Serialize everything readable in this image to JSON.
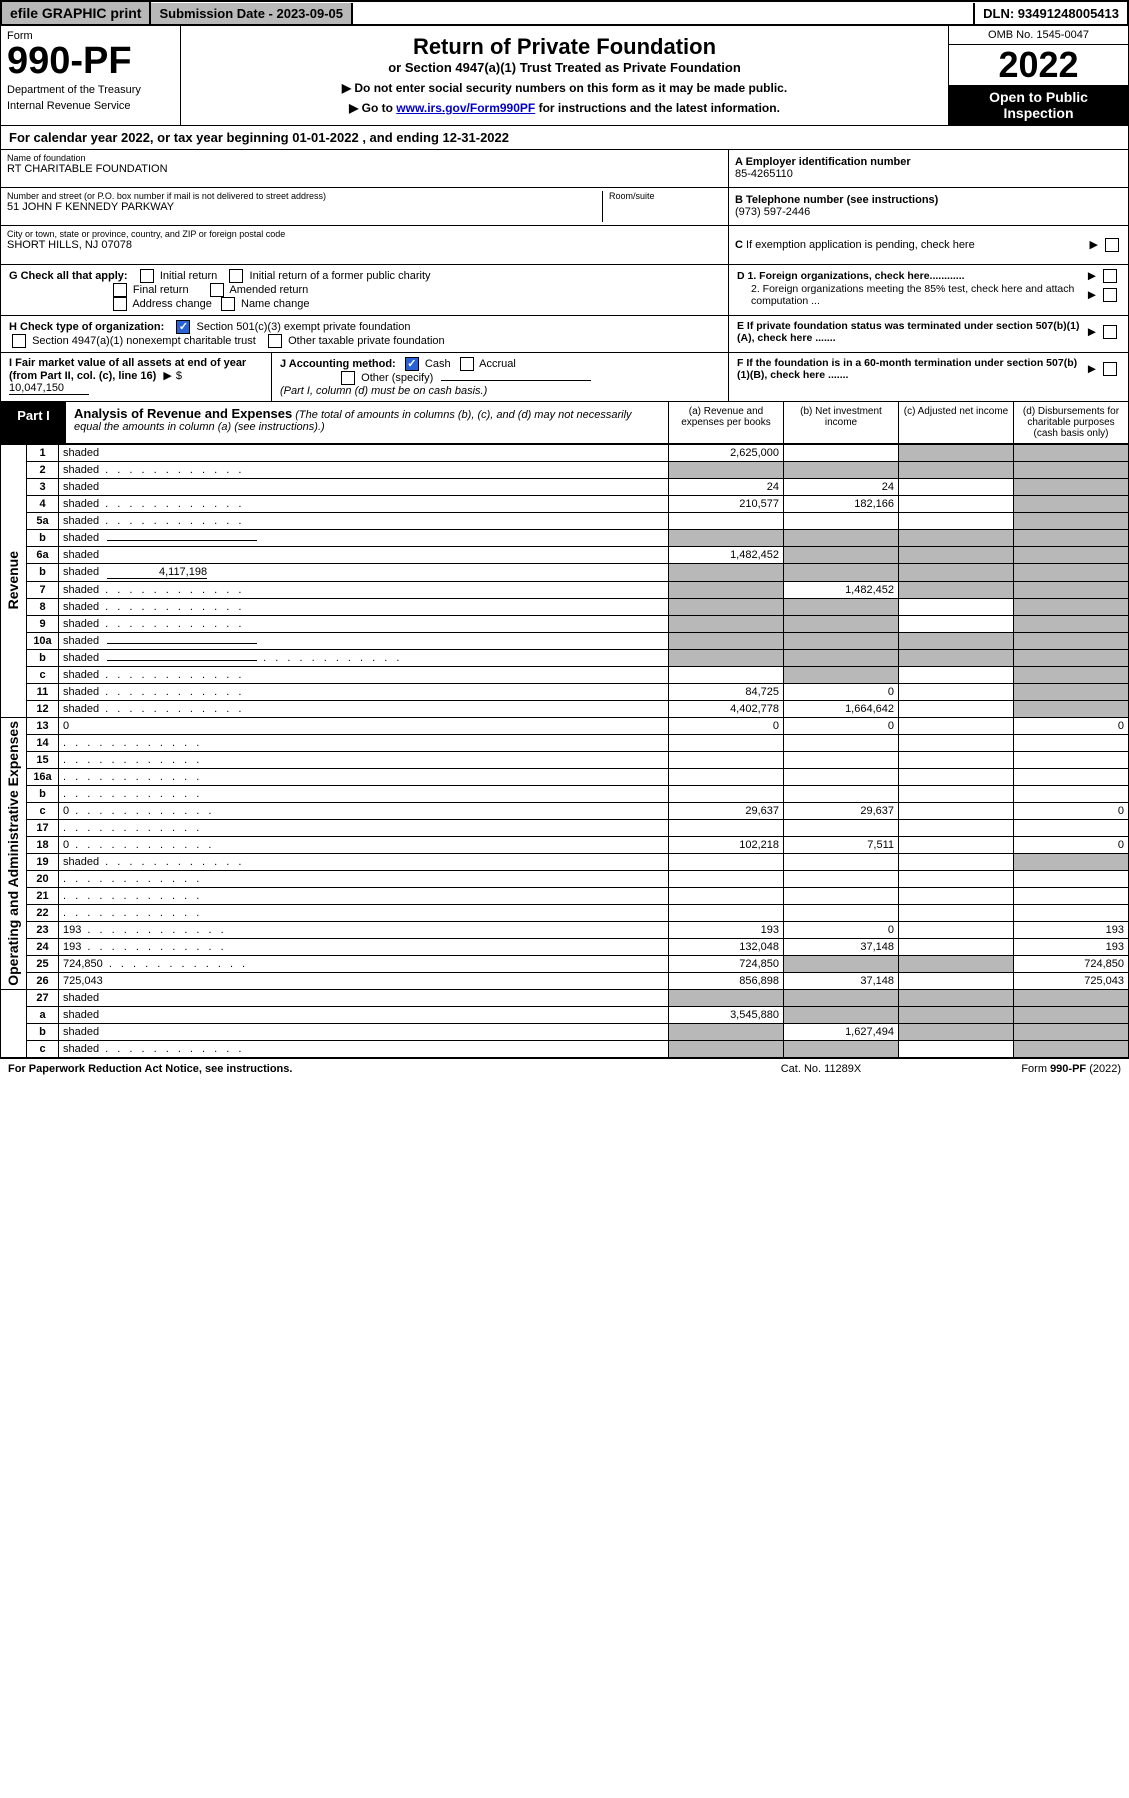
{
  "topbar": {
    "efile": "efile GRAPHIC print",
    "submission": "Submission Date - 2023-09-05",
    "dln": "DLN: 93491248005413"
  },
  "header": {
    "form_word": "Form",
    "form_num": "990-PF",
    "dept": "Department of the Treasury",
    "irs": "Internal Revenue Service",
    "title": "Return of Private Foundation",
    "subtitle": "or Section 4947(a)(1) Trust Treated as Private Foundation",
    "note1": "▶ Do not enter social security numbers on this form as it may be made public.",
    "note2_pre": "▶ Go to ",
    "note2_link": "www.irs.gov/Form990PF",
    "note2_post": " for instructions and the latest information.",
    "omb": "OMB No. 1545-0047",
    "year": "2022",
    "open": "Open to Public Inspection"
  },
  "cal_year": "For calendar year 2022, or tax year beginning 01-01-2022                         , and ending 12-31-2022",
  "info": {
    "name_lbl": "Name of foundation",
    "name_val": "RT CHARITABLE FOUNDATION",
    "addr_lbl": "Number and street (or P.O. box number if mail is not delivered to street address)",
    "addr_val": "51 JOHN F KENNEDY PARKWAY",
    "room_lbl": "Room/suite",
    "city_lbl": "City or town, state or province, country, and ZIP or foreign postal code",
    "city_val": "SHORT HILLS, NJ  07078",
    "a_lbl": "A Employer identification number",
    "a_val": "85-4265110",
    "b_lbl": "B Telephone number (see instructions)",
    "b_val": "(973) 597-2446",
    "c_lbl": "C If exemption application is pending, check here",
    "d1": "D 1. Foreign organizations, check here............",
    "d2": "2. Foreign organizations meeting the 85% test, check here and attach computation ...",
    "e": "E  If private foundation status was terminated under section 507(b)(1)(A), check here .......",
    "f": "F  If the foundation is in a 60-month termination under section 507(b)(1)(B), check here .......",
    "g_lbl": "G Check all that apply:",
    "g_opts": [
      "Initial return",
      "Initial return of a former public charity",
      "Final return",
      "Amended return",
      "Address change",
      "Name change"
    ],
    "h_lbl": "H Check type of organization:",
    "h_opts": [
      "Section 501(c)(3) exempt private foundation",
      "Section 4947(a)(1) nonexempt charitable trust",
      "Other taxable private foundation"
    ],
    "i_lbl": "I Fair market value of all assets at end of year (from Part II, col. (c), line 16)",
    "i_val": "10,047,150",
    "j_lbl": "J Accounting method:",
    "j_cash": "Cash",
    "j_accrual": "Accrual",
    "j_other": "Other (specify)",
    "j_note": "(Part I, column (d) must be on cash basis.)"
  },
  "part1": {
    "label": "Part I",
    "title": "Analysis of Revenue and Expenses",
    "desc": " (The total of amounts in columns (b), (c), and (d) may not necessarily equal the amounts in column (a) (see instructions).)",
    "col_a": "(a)   Revenue and expenses per books",
    "col_b": "(b)   Net investment income",
    "col_c": "(c)   Adjusted net income",
    "col_d": "(d)   Disbursements for charitable purposes (cash basis only)"
  },
  "side_labels": {
    "revenue": "Revenue",
    "opex": "Operating and Administrative Expenses"
  },
  "rows": [
    {
      "n": "1",
      "d": "shaded",
      "a": "2,625,000",
      "b": "",
      "c": "shaded"
    },
    {
      "n": "2",
      "d": "shaded",
      "dots": true,
      "a": "shaded",
      "b": "shaded",
      "c": "shaded"
    },
    {
      "n": "3",
      "d": "shaded",
      "a": "24",
      "b": "24",
      "c": ""
    },
    {
      "n": "4",
      "d": "shaded",
      "dots": true,
      "a": "210,577",
      "b": "182,166",
      "c": ""
    },
    {
      "n": "5a",
      "d": "shaded",
      "dots": true,
      "a": "",
      "b": "",
      "c": ""
    },
    {
      "n": "b",
      "d": "shaded",
      "sub": true,
      "a": "shaded",
      "b": "shaded",
      "c": "shaded"
    },
    {
      "n": "6a",
      "d": "shaded",
      "a": "1,482,452",
      "b": "shaded",
      "c": "shaded"
    },
    {
      "n": "b",
      "d": "shaded",
      "sub": true,
      "subval": "4,117,198",
      "a": "shaded",
      "b": "shaded",
      "c": "shaded"
    },
    {
      "n": "7",
      "d": "shaded",
      "dots": true,
      "a": "shaded",
      "b": "1,482,452",
      "c": "shaded"
    },
    {
      "n": "8",
      "d": "shaded",
      "dots": true,
      "a": "shaded",
      "b": "shaded",
      "c": ""
    },
    {
      "n": "9",
      "d": "shaded",
      "dots": true,
      "a": "shaded",
      "b": "shaded",
      "c": ""
    },
    {
      "n": "10a",
      "d": "shaded",
      "sub": true,
      "a": "shaded",
      "b": "shaded",
      "c": "shaded"
    },
    {
      "n": "b",
      "d": "shaded",
      "dots": true,
      "sub": true,
      "a": "shaded",
      "b": "shaded",
      "c": "shaded"
    },
    {
      "n": "c",
      "d": "shaded",
      "dots": true,
      "a": "",
      "b": "shaded",
      "c": ""
    },
    {
      "n": "11",
      "d": "shaded",
      "dots": true,
      "a": "84,725",
      "b": "0",
      "c": ""
    },
    {
      "n": "12",
      "d": "shaded",
      "dots": true,
      "a": "4,402,778",
      "b": "1,664,642",
      "c": ""
    },
    {
      "n": "13",
      "d": "0",
      "a": "0",
      "b": "0",
      "c": ""
    },
    {
      "n": "14",
      "d": "",
      "dots": true,
      "a": "",
      "b": "",
      "c": ""
    },
    {
      "n": "15",
      "d": "",
      "dots": true,
      "a": "",
      "b": "",
      "c": ""
    },
    {
      "n": "16a",
      "d": "",
      "dots": true,
      "a": "",
      "b": "",
      "c": ""
    },
    {
      "n": "b",
      "d": "",
      "dots": true,
      "a": "",
      "b": "",
      "c": ""
    },
    {
      "n": "c",
      "d": "0",
      "dots": true,
      "a": "29,637",
      "b": "29,637",
      "c": ""
    },
    {
      "n": "17",
      "d": "",
      "dots": true,
      "a": "",
      "b": "",
      "c": ""
    },
    {
      "n": "18",
      "d": "0",
      "dots": true,
      "a": "102,218",
      "b": "7,511",
      "c": ""
    },
    {
      "n": "19",
      "d": "shaded",
      "dots": true,
      "a": "",
      "b": "",
      "c": ""
    },
    {
      "n": "20",
      "d": "",
      "dots": true,
      "a": "",
      "b": "",
      "c": ""
    },
    {
      "n": "21",
      "d": "",
      "dots": true,
      "a": "",
      "b": "",
      "c": ""
    },
    {
      "n": "22",
      "d": "",
      "dots": true,
      "a": "",
      "b": "",
      "c": ""
    },
    {
      "n": "23",
      "d": "193",
      "dots": true,
      "a": "193",
      "b": "0",
      "c": ""
    },
    {
      "n": "24",
      "d": "193",
      "dots": true,
      "a": "132,048",
      "b": "37,148",
      "c": ""
    },
    {
      "n": "25",
      "d": "724,850",
      "dots": true,
      "a": "724,850",
      "b": "shaded",
      "c": "shaded"
    },
    {
      "n": "26",
      "d": "725,043",
      "a": "856,898",
      "b": "37,148",
      "c": ""
    },
    {
      "n": "27",
      "d": "shaded",
      "a": "shaded",
      "b": "shaded",
      "c": "shaded"
    },
    {
      "n": "a",
      "d": "shaded",
      "a": "3,545,880",
      "b": "shaded",
      "c": "shaded"
    },
    {
      "n": "b",
      "d": "shaded",
      "a": "shaded",
      "b": "1,627,494",
      "c": "shaded"
    },
    {
      "n": "c",
      "d": "shaded",
      "dots": true,
      "a": "shaded",
      "b": "shaded",
      "c": ""
    }
  ],
  "footer": {
    "left": "For Paperwork Reduction Act Notice, see instructions.",
    "mid": "Cat. No. 11289X",
    "right": "Form 990-PF (2022)"
  }
}
